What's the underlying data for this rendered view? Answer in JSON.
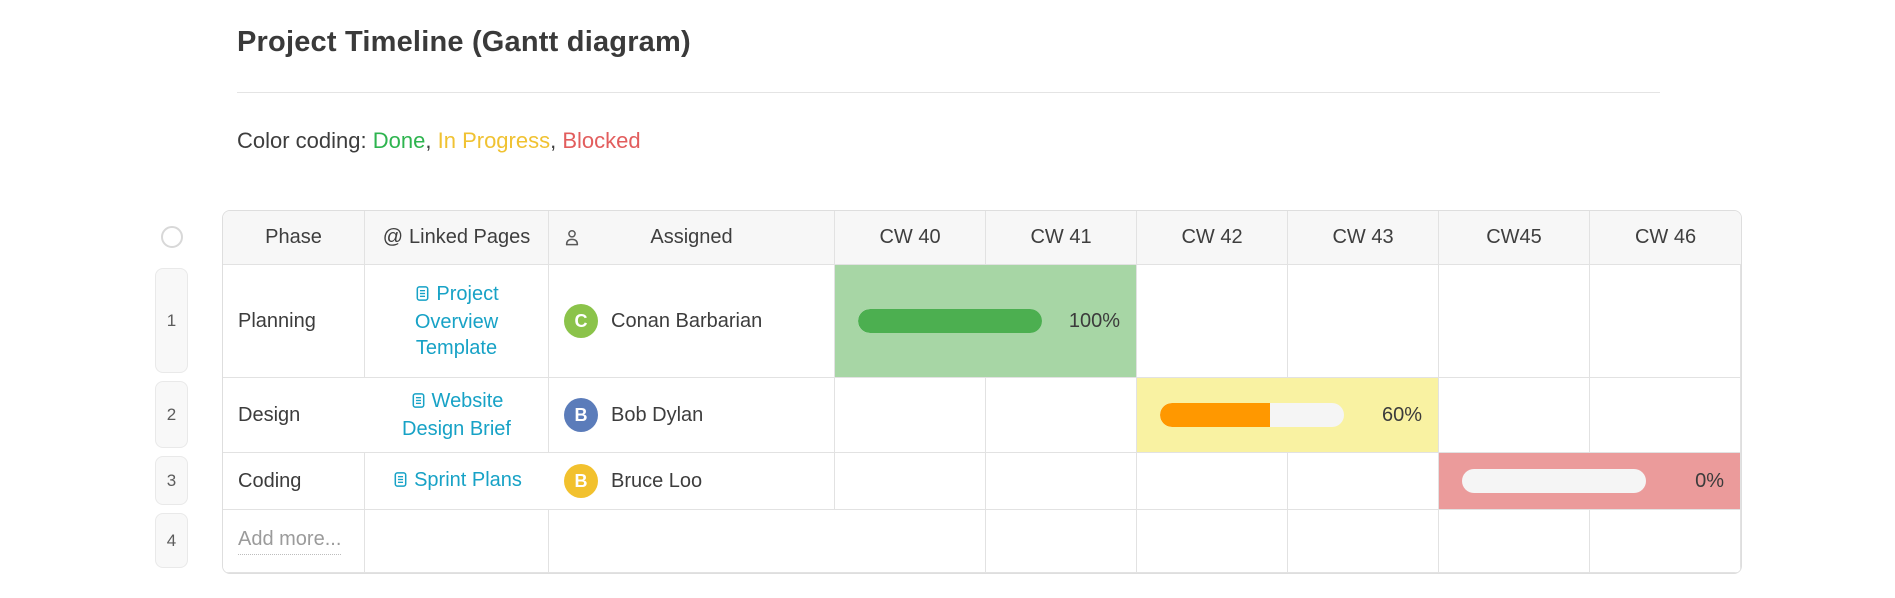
{
  "header": {
    "title": "Project Timeline (Gantt diagram)"
  },
  "legend": {
    "prefix": "Color coding:",
    "separator": ",",
    "items": [
      {
        "label": "Done",
        "color": "#2eb44f"
      },
      {
        "label": "In Progress",
        "color": "#f0c232"
      },
      {
        "label": "Blocked",
        "color": "#e25d5d"
      }
    ]
  },
  "table": {
    "columns": {
      "phase": "Phase",
      "linked_icon": "@",
      "linked": "Linked Pages",
      "assigned": "Assigned",
      "weeks": [
        "CW 40",
        "CW 41",
        "CW 42",
        "CW 43",
        "CW45",
        "CW 46"
      ]
    },
    "rows": [
      {
        "num": "1",
        "phase": "Planning",
        "link": "Project Overview Template",
        "assignee": "Conan Barbarian",
        "initial": "C",
        "avatar_color": "#8bc34a",
        "bar": {
          "bg": "#a7d6a5",
          "fill": "#4caf50",
          "percent": 100,
          "label": "100%"
        }
      },
      {
        "num": "2",
        "phase": "Design",
        "link": "Website Design Brief",
        "assignee": "Bob Dylan",
        "initial": "B",
        "avatar_color": "#5b7cba",
        "bar": {
          "bg": "#f9f2a2",
          "fill": "#ff9800",
          "percent": 60,
          "label": "60%"
        }
      },
      {
        "num": "3",
        "phase": "Coding",
        "link": "Sprint Plans",
        "assignee": "Bruce Loo",
        "initial": "B",
        "avatar_color": "#f2c12e",
        "bar": {
          "bg": "#eb9b9b",
          "fill": "#ff9800",
          "percent": 0,
          "label": "0%"
        }
      },
      {
        "num": "4",
        "placeholder": "Add more..."
      }
    ],
    "status_colors": {
      "done_bg": "#a7d6a5",
      "in_progress_bg": "#f9f2a2",
      "blocked_bg": "#eb9b9b",
      "track": "#f5f5f5"
    }
  }
}
